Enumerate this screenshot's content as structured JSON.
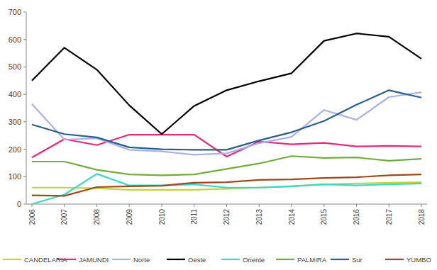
{
  "chart_data": {
    "type": "line",
    "categories": [
      "2006",
      "2007",
      "2008",
      "2009",
      "2010",
      "2011",
      "2012",
      "2013",
      "2014",
      "2015",
      "2016",
      "2017",
      "2018"
    ],
    "series": [
      {
        "name": "CANDELARIA",
        "color": "#c5d43a",
        "values": [
          60,
          60,
          58,
          52,
          52,
          52,
          56,
          60,
          65,
          72,
          75,
          78,
          80
        ]
      },
      {
        "name": "JAMUNDI",
        "color": "#e8297b",
        "values": [
          170,
          237,
          215,
          253,
          253,
          253,
          173,
          228,
          218,
          223,
          210,
          212,
          210
        ]
      },
      {
        "name": "Norte",
        "color": "#a9b2e6",
        "values": [
          365,
          235,
          240,
          198,
          192,
          180,
          185,
          222,
          245,
          343,
          307,
          390,
          408
        ]
      },
      {
        "name": "Oeste",
        "color": "#000000",
        "values": [
          450,
          570,
          490,
          360,
          255,
          358,
          415,
          448,
          477,
          595,
          622,
          610,
          530
        ]
      },
      {
        "name": "Oriente",
        "color": "#3dd6c6",
        "values": [
          0,
          35,
          110,
          68,
          68,
          72,
          60,
          60,
          65,
          72,
          68,
          72,
          75
        ]
      },
      {
        "name": "PALMIRA",
        "color": "#72ad3c",
        "values": [
          155,
          155,
          125,
          108,
          105,
          108,
          128,
          148,
          175,
          168,
          170,
          158,
          165
        ]
      },
      {
        "name": "Sur",
        "color": "#2a5d8c",
        "values": [
          290,
          255,
          243,
          207,
          200,
          198,
          198,
          232,
          262,
          303,
          362,
          415,
          388
        ]
      },
      {
        "name": "YUMBO",
        "color": "#9a4a1c",
        "values": [
          32,
          30,
          62,
          65,
          67,
          78,
          80,
          88,
          90,
          95,
          98,
          105,
          108
        ]
      }
    ],
    "ylim": [
      0,
      700
    ],
    "yticks": [
      0,
      100,
      200,
      300,
      400,
      500,
      600,
      700
    ],
    "grid": false,
    "legend": "bottom"
  }
}
